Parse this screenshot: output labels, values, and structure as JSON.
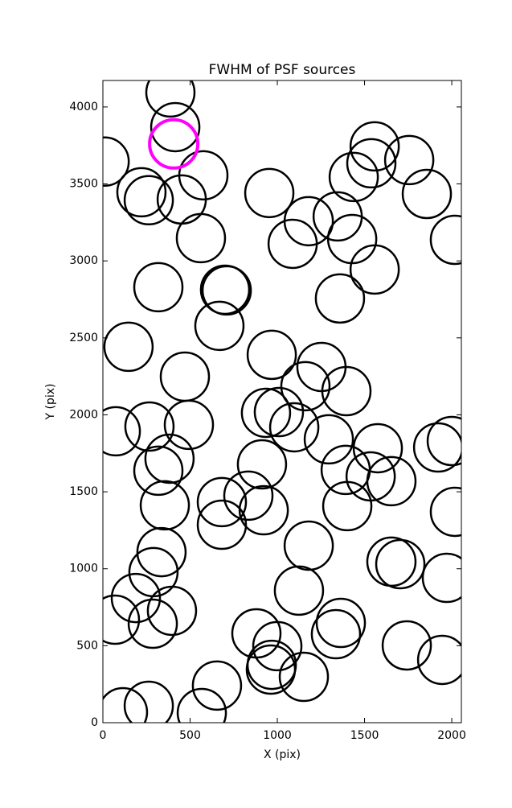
{
  "chart_data": {
    "type": "scatter",
    "title": "FWHM of PSF sources",
    "x_label": "X (pix)",
    "y_label": "Y (pix)",
    "xlim": [
      0,
      2055
    ],
    "ylim": [
      0,
      4172
    ],
    "xticks": [
      0,
      500,
      1000,
      1500,
      2000
    ],
    "yticks": [
      0,
      500,
      1000,
      1500,
      2000,
      2500,
      3000,
      3500,
      4000
    ],
    "marker": "open-circle",
    "grid": false,
    "series": [
      {
        "color": "#000000",
        "x": [
          387,
          415,
          10,
          221,
          263,
          452,
          576,
          562,
          318,
          700,
          710,
          668,
          147,
          470,
          74,
          267,
          493,
          382,
          318,
          355,
          682,
          682,
          834,
          912,
          922,
          336,
          290,
          189,
          69,
          286,
          396,
          954,
          1088,
          1180,
          1346,
          1429,
          1438,
          1539,
          1558,
          1756,
          1857,
          2018,
          1558,
          1359,
          968,
          1253,
          1161,
          1396,
          935,
          1009,
          1097,
          1295,
          1392,
          1576,
          1535,
          1654,
          1401,
          1922,
          2000,
          2018,
          1180,
          1654,
          1705,
          1972,
          1124,
          1364,
          1336,
          880,
          1000,
          968,
          963,
          1152,
          1742,
          1945,
          654,
          567,
          263,
          115
        ],
        "y": [
          4094,
          3869,
          3645,
          3446,
          3394,
          3399,
          3556,
          3148,
          2829,
          2813,
          2808,
          2578,
          2442,
          2248,
          1893,
          1924,
          1935,
          1715,
          1637,
          1412,
          1433,
          1286,
          1475,
          1678,
          1380,
          1108,
          978,
          810,
          669,
          643,
          727,
          3441,
          3111,
          3258,
          3289,
          3142,
          3545,
          3634,
          3744,
          3655,
          3435,
          3137,
          2944,
          2756,
          2390,
          2311,
          2186,
          2154,
          2013,
          2018,
          1919,
          1841,
          1642,
          1783,
          1600,
          1569,
          1407,
          1788,
          1830,
          1370,
          1150,
          1046,
          1030,
          941,
          858,
          648,
          575,
          580,
          497,
          376,
          345,
          298,
          502,
          408,
          241,
          63,
          110,
          68
        ]
      },
      {
        "color": "#ff00ff",
        "x": [
          406
        ],
        "y": [
          3760
        ]
      }
    ]
  }
}
